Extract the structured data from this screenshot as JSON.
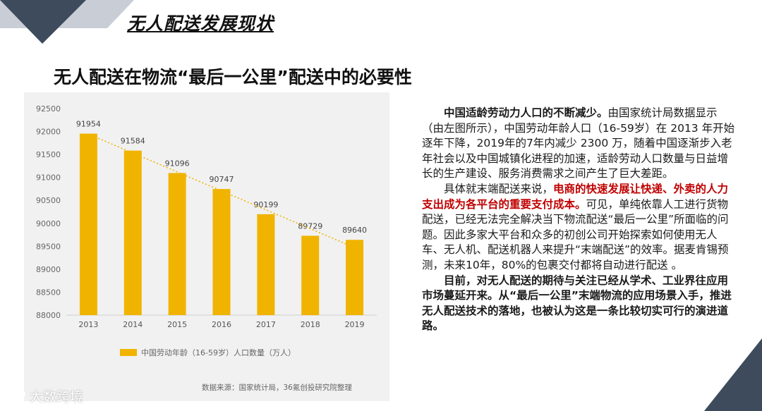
{
  "slide": {
    "title": "无人配送发展现状",
    "subtitle": "无人配送在物流“最后一公里”配送中的必要性",
    "source_note": "数据来源：国家统计局，36氪创投研究院整理",
    "watermark": "大数跨境",
    "colors": {
      "accent": "#f0b400",
      "deco_dark": "#3d4b5c",
      "deco_light": "#c9ced6",
      "highlight_red": "#c00000"
    }
  },
  "chart_data": {
    "type": "bar",
    "categories": [
      "2013",
      "2014",
      "2015",
      "2016",
      "2017",
      "2018",
      "2019"
    ],
    "series": [
      {
        "name": "中国劳动年龄（16-59岁）人口数量（万人）",
        "values": [
          91954,
          91584,
          91096,
          90747,
          90199,
          89729,
          89640
        ]
      }
    ],
    "data_labels": [
      "91954",
      "91584",
      "91096",
      "90747",
      "90199",
      "89729",
      "89640"
    ],
    "yticks": [
      "88000",
      "88500",
      "89000",
      "89500",
      "90000",
      "90500",
      "91000",
      "91500",
      "92000",
      "92500"
    ],
    "ylim": [
      88000,
      92500
    ],
    "trendline": "dotted",
    "legend_position": "bottom",
    "grid": false,
    "bar_color": "#f0b400",
    "trend_color": "#f0b400"
  },
  "text": {
    "p1_bold": "中国适龄劳动力人口的不断减少。",
    "p1_rest": "由国家统计局数据显示（由左图所示），中国劳动年龄人口（16-59岁）在 2013 年开始逐年下降，2019年的7年内减少 2300 万，随着中国逐渐步入老年社会以及中国城镇化进程的加速，适龄劳动人口数量与日益增长的生产建设、服务消费需求之间产生了巨大差距。",
    "p2_start": "具体就末端配送来说，",
    "p2_red": "电商的快速发展让快递、外卖的人力支出成为各平台的重要支付成本。",
    "p2_rest": "可见，单纯依靠人工进行货物配送，已经无法完全解决当下物流配送“最后一公里”所面临的问题。因此多家大平台和众多的初创公司开始探索如何使用无人车、无人机、配送机器人来提升“末端配送”的效率。据麦肯锡预测，未来10年，80%的包裹交付都将自动进行配送 。",
    "p3": "目前，对无人配送的期待与关注已经从学术、工业界往应用市场蔓延开来。从“最后一公里”末端物流的应用场景入手，推进无人配送技术的落地，也被认为这是一条比较切实可行的演进道路。"
  }
}
